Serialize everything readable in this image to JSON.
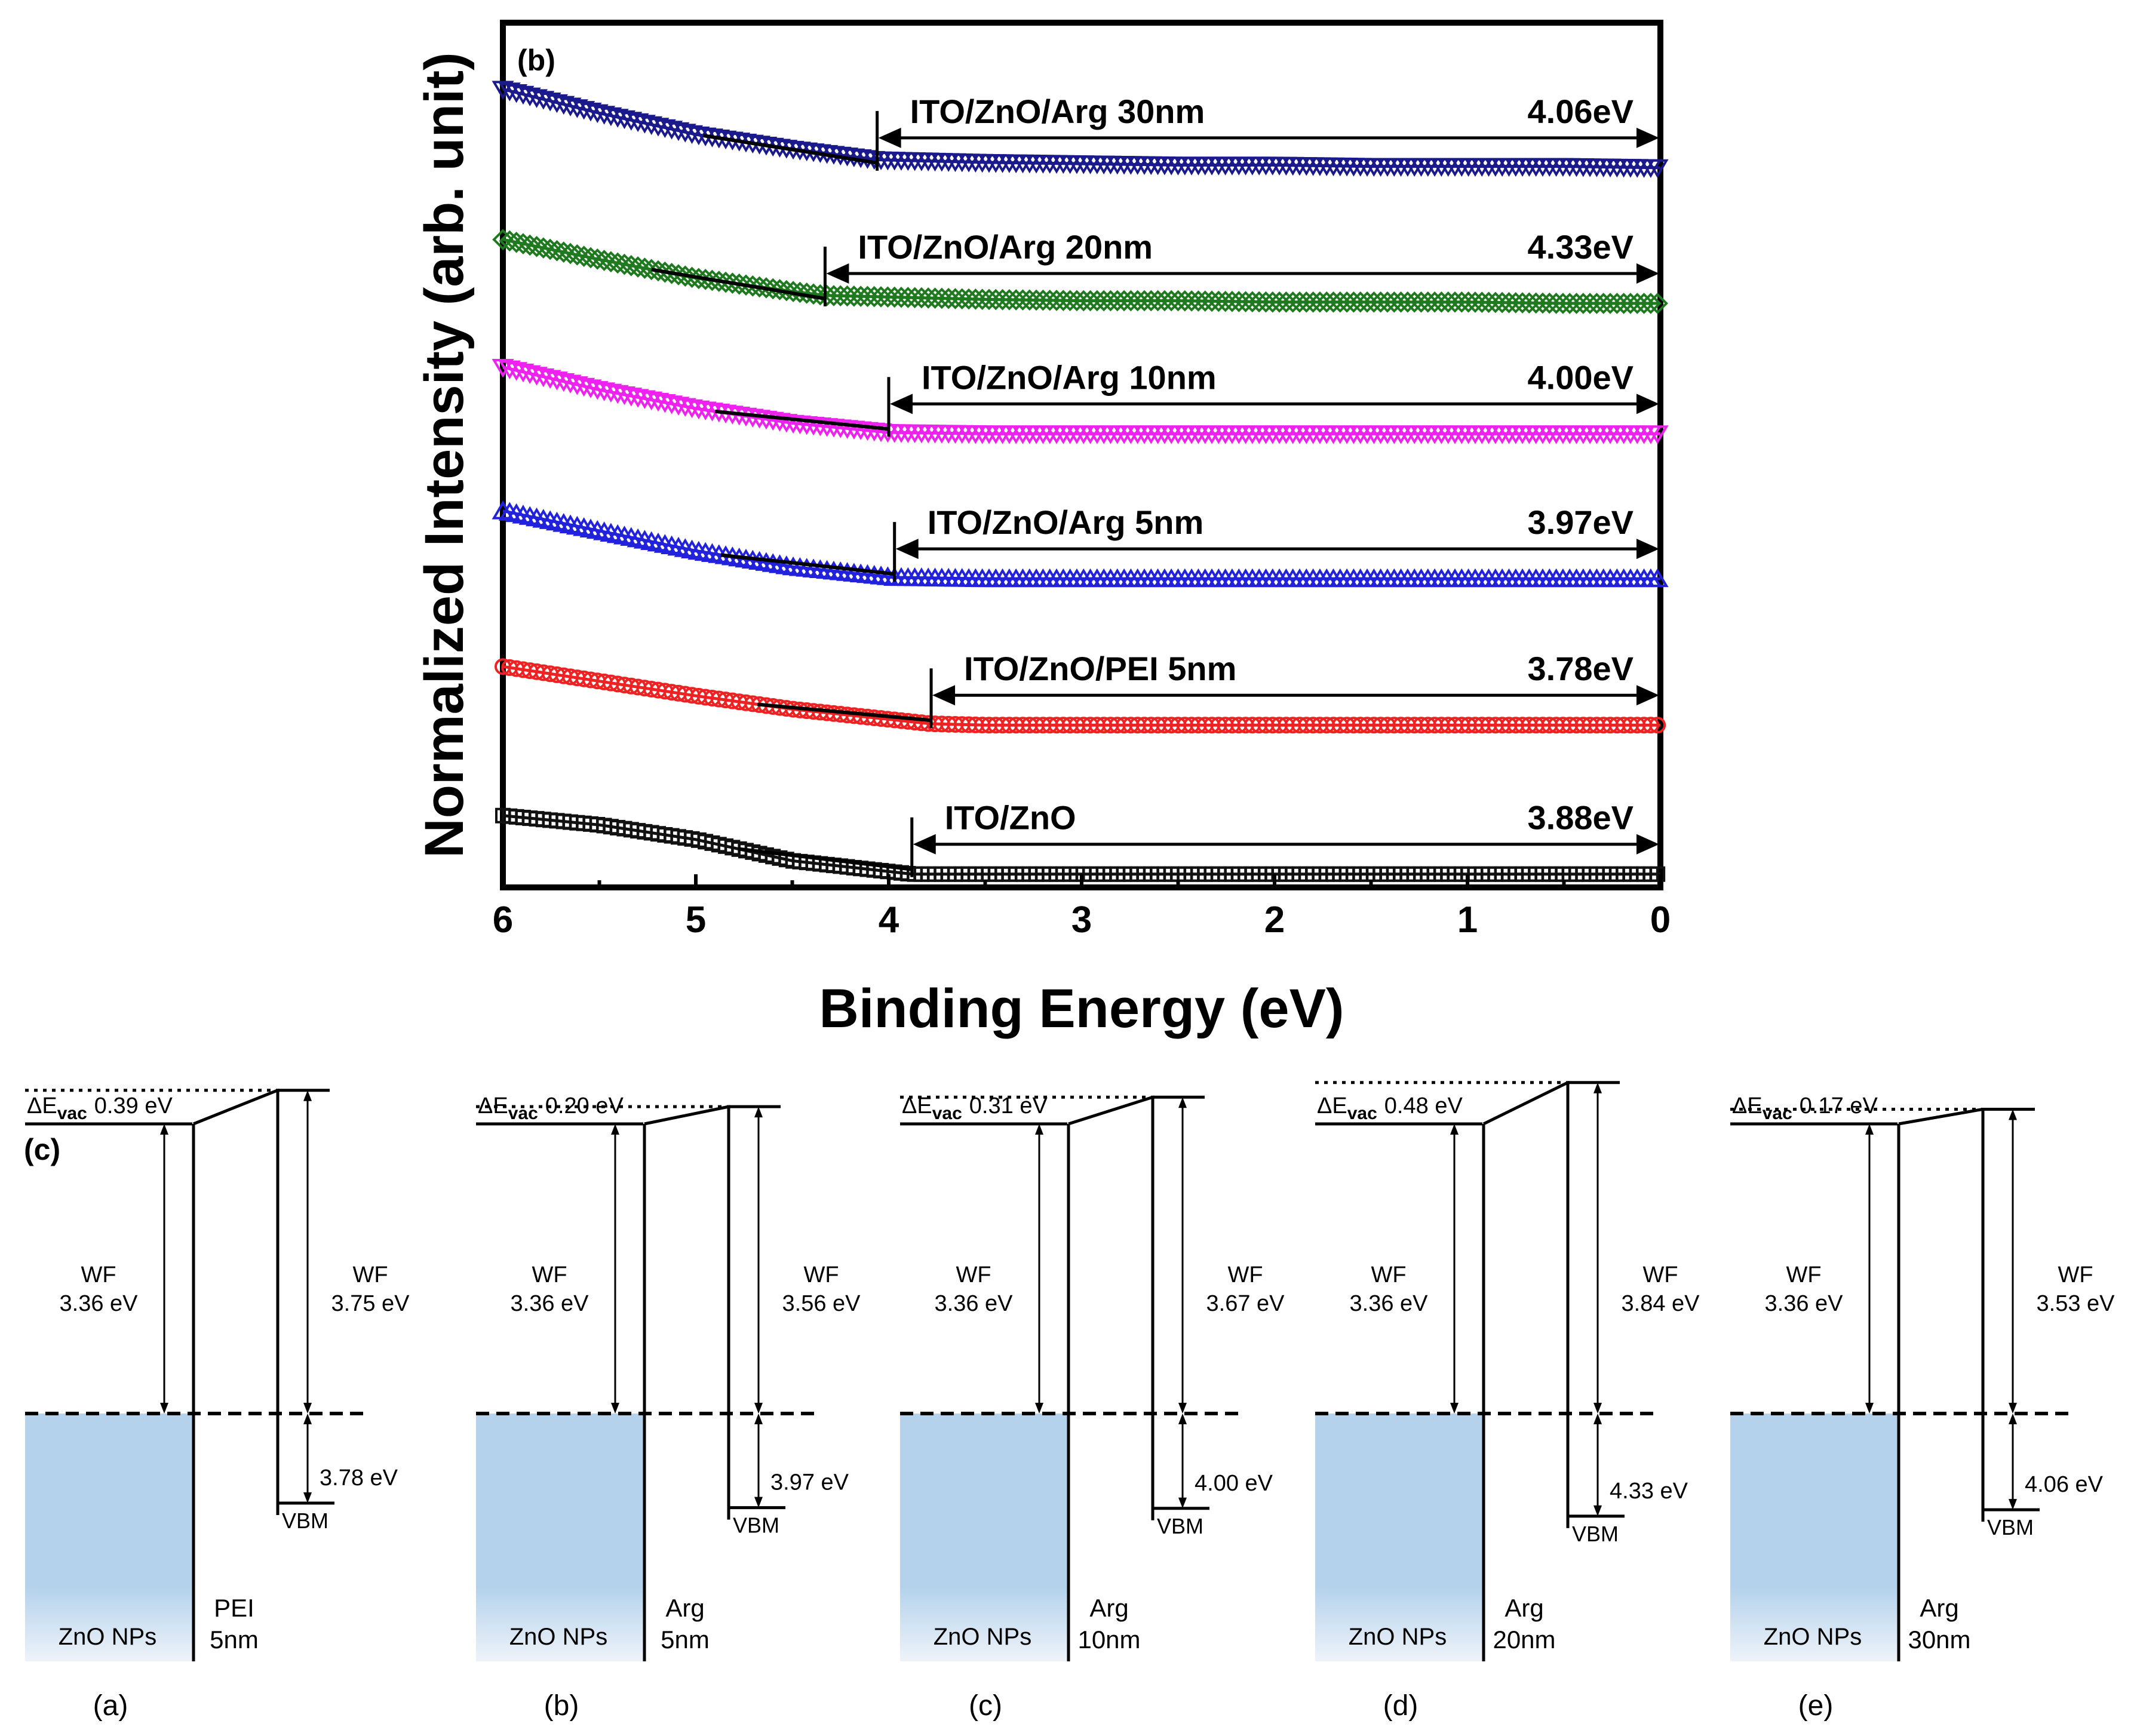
{
  "chart_data": [
    {
      "type": "line",
      "panel_label": "(b)",
      "title": "",
      "xlabel": "Binding Energy (eV)",
      "ylabel": "Normalized Intensity (arb. unit)",
      "xlim": [
        6,
        0
      ],
      "x_ticks": [
        "6",
        "5",
        "4",
        "3",
        "2",
        "1",
        "0"
      ],
      "x_tick_values": [
        6,
        5,
        4,
        3,
        2,
        1,
        0
      ],
      "y_ticks": [],
      "ylim": [
        0,
        6.5
      ],
      "series": [
        {
          "name": "ITO/ZnO/Arg 30nm",
          "value_label": "4.06eV",
          "onset_ev": 4.06,
          "color": "#1a1a8c",
          "marker": "down-triangle",
          "x": [
            6.0,
            5.5,
            5.0,
            4.5,
            4.06,
            3.5,
            3.0,
            2.5,
            2.0,
            1.5,
            1.0,
            0.5,
            0.0
          ],
          "y": [
            6.0,
            5.82,
            5.66,
            5.55,
            5.47,
            5.45,
            5.44,
            5.43,
            5.43,
            5.42,
            5.42,
            5.42,
            5.41
          ]
        },
        {
          "name": "ITO/ZnO/Arg 20nm",
          "value_label": "4.33eV",
          "onset_ev": 4.33,
          "color": "#1f7a1f",
          "marker": "diamond",
          "x": [
            6.0,
            5.5,
            5.0,
            4.5,
            4.33,
            3.5,
            3.0,
            2.5,
            2.0,
            1.5,
            1.0,
            0.5,
            0.0
          ],
          "y": [
            4.87,
            4.72,
            4.58,
            4.48,
            4.45,
            4.42,
            4.41,
            4.41,
            4.4,
            4.4,
            4.4,
            4.39,
            4.39
          ]
        },
        {
          "name": "ITO/ZnO/Arg 10nm",
          "value_label": "4.00eV",
          "onset_ev": 4.0,
          "color": "#ee22ee",
          "marker": "down-triangle",
          "x": [
            6.0,
            5.5,
            5.0,
            4.5,
            4.0,
            3.5,
            3.0,
            2.5,
            2.0,
            1.5,
            1.0,
            0.5,
            0.0
          ],
          "y": [
            3.91,
            3.74,
            3.6,
            3.49,
            3.42,
            3.41,
            3.41,
            3.41,
            3.41,
            3.41,
            3.41,
            3.41,
            3.41
          ]
        },
        {
          "name": "ITO/ZnO/Arg 5nm",
          "value_label": "3.97eV",
          "onset_ev": 3.97,
          "color": "#2222dd",
          "marker": "up-triangle",
          "x": [
            6.0,
            5.5,
            5.0,
            4.5,
            3.97,
            3.5,
            3.0,
            2.5,
            2.0,
            1.5,
            1.0,
            0.5,
            0.0
          ],
          "y": [
            2.83,
            2.68,
            2.53,
            2.41,
            2.33,
            2.32,
            2.32,
            2.32,
            2.32,
            2.32,
            2.32,
            2.32,
            2.32
          ]
        },
        {
          "name": "ITO/ZnO/PEI 5nm",
          "value_label": "3.78eV",
          "onset_ev": 3.78,
          "color": "#ee2222",
          "marker": "circle",
          "x": [
            6.0,
            5.5,
            5.0,
            4.5,
            3.78,
            3.5,
            3.0,
            2.5,
            2.0,
            1.5,
            1.0,
            0.5,
            0.0
          ],
          "y": [
            1.66,
            1.55,
            1.44,
            1.34,
            1.23,
            1.22,
            1.22,
            1.22,
            1.22,
            1.22,
            1.22,
            1.22,
            1.22
          ]
        },
        {
          "name": "ITO/ZnO",
          "value_label": "3.88eV",
          "onset_ev": 3.88,
          "color": "#111111",
          "marker": "square",
          "x": [
            6.0,
            5.5,
            5.0,
            4.5,
            3.88,
            3.5,
            3.0,
            2.5,
            2.0,
            1.5,
            1.0,
            0.5,
            0.0
          ],
          "y": [
            0.54,
            0.47,
            0.36,
            0.2,
            0.1,
            0.1,
            0.1,
            0.1,
            0.1,
            0.1,
            0.1,
            0.1,
            0.1
          ]
        }
      ]
    },
    {
      "type": "diagram",
      "panel_label": "(c)",
      "title": "",
      "diagrams": [
        {
          "label": "(a)",
          "delta_vac": "0.39 eV",
          "wf_left_line1": "WF",
          "wf_left_line2": "3.36 eV",
          "wf_right_line1": "WF",
          "wf_right_line2": "3.75 eV",
          "layer_line1": "PEI",
          "layer_line2": "5nm",
          "bottom_value": "3.78 eV",
          "delta_vac_value": 0.39,
          "wf_right_value": 3.75,
          "vbm_value": 3.78
        },
        {
          "label": "(b)",
          "delta_vac": "0.20 eV",
          "wf_left_line1": "WF",
          "wf_left_line2": "3.36 eV",
          "wf_right_line1": "WF",
          "wf_right_line2": "3.56 eV",
          "layer_line1": "Arg",
          "layer_line2": "5nm",
          "bottom_value": "3.97 eV",
          "delta_vac_value": 0.2,
          "wf_right_value": 3.56,
          "vbm_value": 3.97
        },
        {
          "label": "(c)",
          "delta_vac": "0.31 eV",
          "wf_left_line1": "WF",
          "wf_left_line2": "3.36 eV",
          "wf_right_line1": "WF",
          "wf_right_line2": "3.67 eV",
          "layer_line1": "Arg",
          "layer_line2": "10nm",
          "bottom_value": "4.00 eV",
          "delta_vac_value": 0.31,
          "wf_right_value": 3.67,
          "vbm_value": 4.0
        },
        {
          "label": "(d)",
          "delta_vac": "0.48 eV",
          "wf_left_line1": "WF",
          "wf_left_line2": "3.36 eV",
          "wf_right_line1": "WF",
          "wf_right_line2": "3.84 eV",
          "layer_line1": "Arg",
          "layer_line2": "20nm",
          "bottom_value": "4.33 eV",
          "delta_vac_value": 0.48,
          "wf_right_value": 3.84,
          "vbm_value": 4.33
        },
        {
          "label": "(e)",
          "delta_vac": "0.17 eV",
          "wf_left_line1": "WF",
          "wf_left_line2": "3.36 eV",
          "wf_right_line1": "WF",
          "wf_right_line2": "3.53 eV",
          "layer_line1": "Arg",
          "layer_line2": "30nm",
          "bottom_value": "4.06 eV",
          "delta_vac_value": 0.17,
          "wf_right_value": 3.53,
          "vbm_value": 4.06
        }
      ],
      "common": {
        "delta_prefix": "ΔE",
        "delta_sub": "vac",
        "left_material": "ZnO NPs",
        "vbm_label": "VBM",
        "fill_color": "#b4d2ec",
        "fill_color_bottom": "#eef3f9"
      }
    }
  ]
}
